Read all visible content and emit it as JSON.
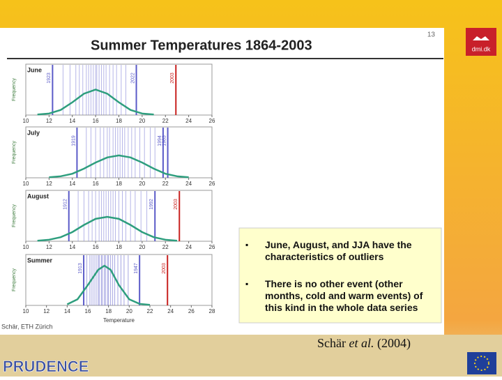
{
  "slide": {
    "page_number": "13",
    "title": "Summer Temperatures 1864-2003",
    "logo": "dmi.dk",
    "credit": "Schär, ETH Zürich",
    "citation": [
      "Schär ",
      "et al.",
      " (2004)"
    ],
    "footer_logo": "PRUDENCE",
    "bullets": [
      "June, August, and JJA have the characteristics of outliers",
      "There is no other event (other months, cold and warm events) of this kind in the whole data series"
    ]
  },
  "chart_data": [
    {
      "type": "stripe",
      "title": "June",
      "ylabel": "Frequency",
      "xlim": [
        10,
        26
      ],
      "xticks": [
        10,
        12,
        14,
        16,
        18,
        20,
        22,
        24,
        26
      ],
      "ylim": [
        0,
        1
      ],
      "stripe_color": "#7a7ad6",
      "stripes": [
        13.2,
        13.8,
        14.3,
        14.6,
        14.9,
        15.2,
        15.4,
        15.6,
        15.8,
        16.0,
        16.1,
        16.3,
        16.5,
        16.7,
        16.9,
        17.2,
        17.5,
        17.8,
        18.2,
        18.6
      ],
      "events": [
        {
          "label": "1923",
          "x": 12.3,
          "color": "#5a5ac8"
        },
        {
          "label": "2022",
          "x": 19.5,
          "color": "#5a5ac8"
        },
        {
          "label": "2003",
          "x": 22.9,
          "color": "#c8201e"
        }
      ],
      "curve_color": "#2e9e7e",
      "curve_x": [
        11,
        12,
        13,
        14,
        15,
        16,
        17,
        18,
        19,
        20,
        21
      ],
      "curve_y": [
        0.01,
        0.03,
        0.1,
        0.25,
        0.42,
        0.5,
        0.42,
        0.25,
        0.1,
        0.03,
        0.01
      ]
    },
    {
      "type": "stripe",
      "title": "July",
      "ylabel": "Frequency",
      "xlim": [
        10,
        26
      ],
      "xticks": [
        10,
        12,
        14,
        16,
        18,
        20,
        22,
        24,
        26
      ],
      "ylim": [
        0,
        1
      ],
      "stripe_color": "#7a7ad6",
      "stripes": [
        15.2,
        15.6,
        16.0,
        16.4,
        16.7,
        17.0,
        17.2,
        17.5,
        17.7,
        17.9,
        18.1,
        18.3,
        18.5,
        18.8,
        19.1,
        19.4,
        19.8,
        20.2,
        20.7,
        21.1
      ],
      "events": [
        {
          "label": "1919",
          "x": 14.4,
          "color": "#5a5ac8"
        },
        {
          "label": "1994",
          "x": 21.8,
          "color": "#5a5ac8"
        },
        {
          "label": "1983",
          "x": 22.2,
          "color": "#5a5ac8"
        }
      ],
      "curve_color": "#2e9e7e",
      "curve_x": [
        12,
        13,
        14,
        15,
        16,
        17,
        18,
        19,
        20,
        21,
        22,
        23,
        24
      ],
      "curve_y": [
        0.01,
        0.03,
        0.08,
        0.18,
        0.3,
        0.4,
        0.44,
        0.4,
        0.3,
        0.18,
        0.08,
        0.03,
        0.01
      ]
    },
    {
      "type": "stripe",
      "title": "August",
      "ylabel": "Frequency",
      "xlim": [
        10,
        26
      ],
      "xticks": [
        10,
        12,
        14,
        16,
        18,
        20,
        22,
        24,
        26
      ],
      "ylim": [
        0,
        1
      ],
      "stripe_color": "#7a7ad6",
      "stripes": [
        14.5,
        15.0,
        15.4,
        15.7,
        16.0,
        16.3,
        16.5,
        16.7,
        16.9,
        17.1,
        17.3,
        17.5,
        17.7,
        18.0,
        18.3,
        18.6,
        19.0,
        19.4,
        19.9,
        20.4
      ],
      "events": [
        {
          "label": "1912",
          "x": 13.7,
          "color": "#5a5ac8"
        },
        {
          "label": "1992",
          "x": 21.1,
          "color": "#5a5ac8"
        },
        {
          "label": "2003",
          "x": 23.2,
          "color": "#c8201e"
        }
      ],
      "curve_color": "#2e9e7e",
      "curve_x": [
        11,
        12,
        13,
        14,
        15,
        16,
        17,
        18,
        19,
        20,
        21,
        22,
        23
      ],
      "curve_y": [
        0.01,
        0.03,
        0.08,
        0.18,
        0.32,
        0.44,
        0.48,
        0.44,
        0.32,
        0.18,
        0.08,
        0.03,
        0.01
      ]
    },
    {
      "type": "stripe",
      "title": "Summer",
      "ylabel": "Frequency",
      "xlabel": "Temperature",
      "xlim": [
        10,
        28
      ],
      "xticks": [
        10,
        12,
        14,
        16,
        18,
        20,
        22,
        24,
        26,
        28
      ],
      "ylim": [
        0,
        1
      ],
      "stripe_color": "#5a5ac8",
      "stripes": [
        15.9,
        16.2,
        16.4,
        16.6,
        16.8,
        17.0,
        17.1,
        17.3,
        17.4,
        17.6,
        17.7,
        17.9,
        18.0,
        18.2,
        18.4,
        18.6,
        18.9,
        19.2,
        19.5,
        19.9
      ],
      "events": [
        {
          "label": "1913",
          "x": 15.6,
          "color": "#5a5ac8"
        },
        {
          "label": "1947",
          "x": 21.0,
          "color": "#5a5ac8"
        },
        {
          "label": "2003",
          "x": 23.7,
          "color": "#c8201e"
        }
      ],
      "curve_color": "#2e9e7e",
      "curve_x": [
        14,
        15,
        16,
        17,
        17.6,
        18.2,
        19,
        20,
        21,
        22
      ],
      "curve_y": [
        0.02,
        0.12,
        0.4,
        0.7,
        0.78,
        0.7,
        0.4,
        0.12,
        0.03,
        0.01
      ]
    }
  ]
}
